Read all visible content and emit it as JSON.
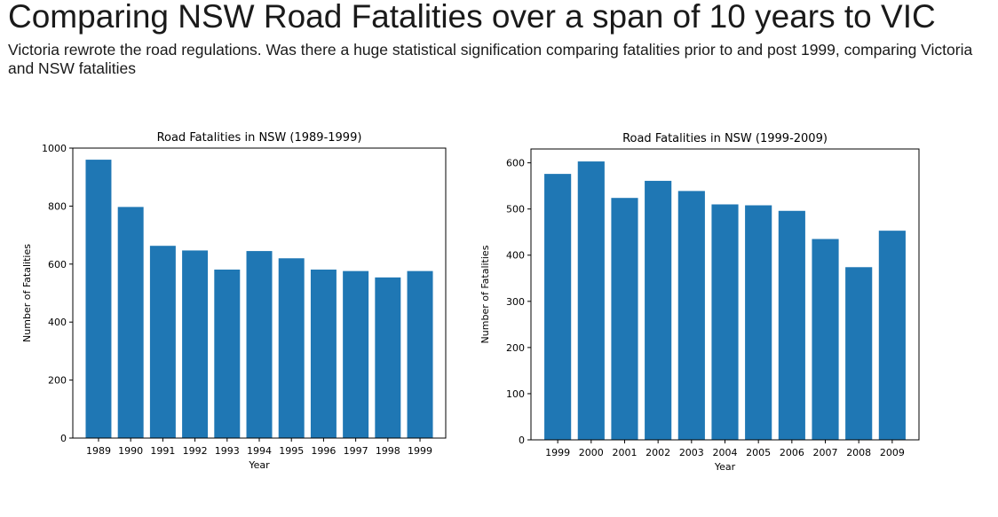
{
  "slide": {
    "title": "Comparing NSW Road Fatalities over a span of 10 years to VIC",
    "subtitle": "Victoria rewrote the road regulations.  Was there a huge statistical signification comparing fatalities prior to and post 1999, comparing Victoria and NSW fatalities"
  },
  "colors": {
    "bar": "#1f77b4",
    "axis": "#000000"
  },
  "chart_data": [
    {
      "type": "bar",
      "title": "Road Fatalities in NSW (1989-1999)",
      "xlabel": "Year",
      "ylabel": "Number of Fatalities",
      "categories": [
        "1989",
        "1990",
        "1991",
        "1992",
        "1993",
        "1994",
        "1995",
        "1996",
        "1997",
        "1998",
        "1999"
      ],
      "values": [
        960,
        797,
        663,
        647,
        581,
        645,
        620,
        581,
        576,
        554,
        576
      ],
      "ylim": [
        0,
        1000
      ],
      "yticks": [
        0,
        200,
        400,
        600,
        800,
        1000
      ],
      "grid": false,
      "legend": "none"
    },
    {
      "type": "bar",
      "title": "Road Fatalities in NSW (1999-2009)",
      "xlabel": "Year",
      "ylabel": "Number of Fatalities",
      "categories": [
        "1999",
        "2000",
        "2001",
        "2002",
        "2003",
        "2004",
        "2005",
        "2006",
        "2007",
        "2008",
        "2009"
      ],
      "values": [
        576,
        603,
        524,
        561,
        539,
        510,
        508,
        496,
        435,
        374,
        453
      ],
      "ylim": [
        0,
        630
      ],
      "yticks": [
        0,
        100,
        200,
        300,
        400,
        500,
        600
      ],
      "grid": false,
      "legend": "none"
    }
  ]
}
